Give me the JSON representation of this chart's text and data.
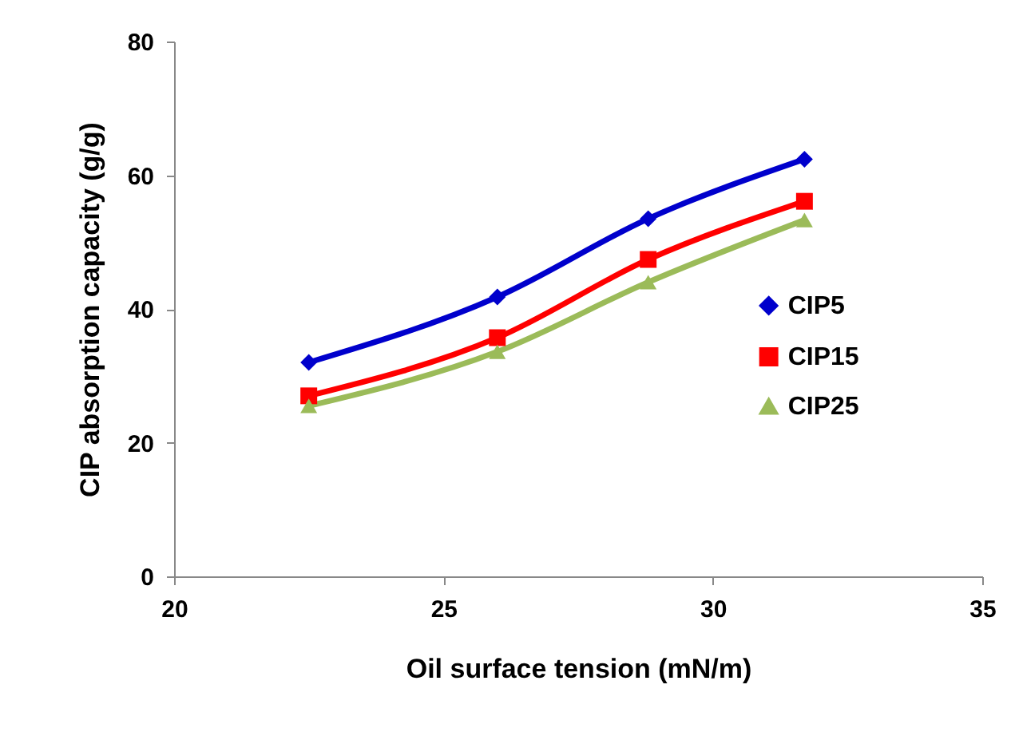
{
  "chart_data": {
    "type": "line",
    "xlabel": "Oil surface tension (mN/m)",
    "ylabel": "CIP absorption capacity (g/g)",
    "x": [
      22.5,
      26,
      28.8,
      31.7
    ],
    "series": [
      {
        "name": "CIP5",
        "color": "#0000cc",
        "marker": "diamond",
        "values": [
          32.0,
          41.8,
          53.5,
          62.4
        ]
      },
      {
        "name": "CIP15",
        "color": "#ff0000",
        "marker": "square",
        "values": [
          27.0,
          35.7,
          47.4,
          56.1
        ]
      },
      {
        "name": "CIP25",
        "color": "#9bbb59",
        "marker": "triangle",
        "values": [
          25.5,
          33.6,
          44.0,
          53.3
        ]
      }
    ],
    "xlim": [
      20,
      35
    ],
    "xticks": [
      20,
      25,
      30,
      35
    ],
    "ylim": [
      0,
      80
    ],
    "yticks": [
      0,
      20,
      40,
      60,
      80
    ],
    "grid": false,
    "legend": "right",
    "line_style": "solid"
  }
}
